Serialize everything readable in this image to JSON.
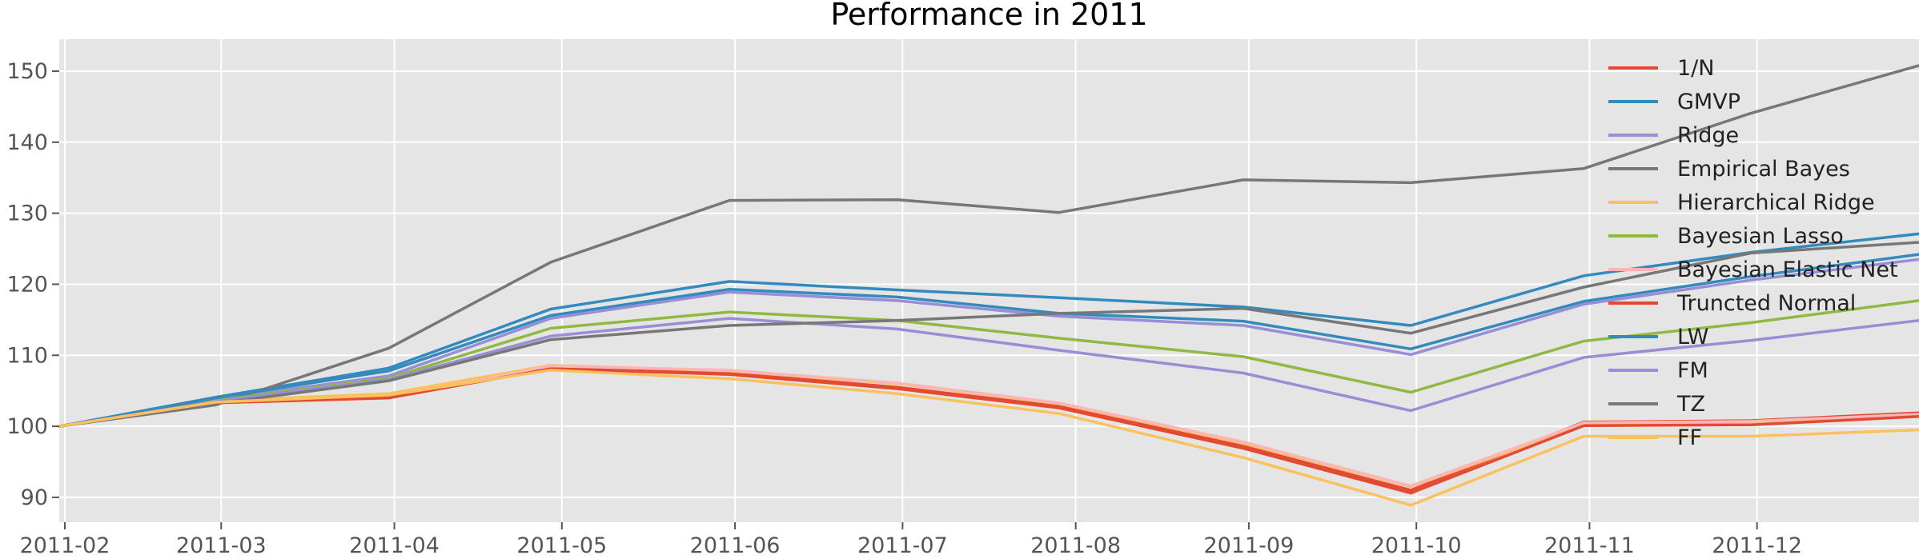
{
  "chart_data": {
    "type": "line",
    "title": "Performance in 2011",
    "xlabel": "",
    "ylabel": "",
    "x": [
      "2011-01-31",
      "2011-02-28",
      "2011-03-31",
      "2011-04-29",
      "2011-05-31",
      "2011-06-30",
      "2011-07-29",
      "2011-08-31",
      "2011-09-30",
      "2011-10-31",
      "2011-11-30",
      "2011-12-30"
    ],
    "xticks": [
      "2011-02",
      "2011-03",
      "2011-04",
      "2011-05",
      "2011-06",
      "2011-07",
      "2011-08",
      "2011-09",
      "2011-10",
      "2011-11",
      "2011-12"
    ],
    "yticks": [
      90,
      100,
      110,
      120,
      130,
      140,
      150
    ],
    "xlim": [
      "2011-01-31",
      "2011-12-30"
    ],
    "ylim": [
      86.5,
      154.5
    ],
    "grid": true,
    "legend_position": "top-right",
    "background": "#e5e5e5",
    "series": [
      {
        "name": "1/N",
        "color": "#e24a33",
        "values": [
          100,
          103.4,
          104.1,
          108.3,
          107.5,
          105.5,
          102.8,
          97.2,
          91.0,
          100.6,
          100.8,
          101.9
        ]
      },
      {
        "name": "GMVP",
        "color": "#348abd",
        "values": [
          100,
          104.1,
          108.2,
          116.5,
          120.4,
          119.2,
          118.1,
          116.8,
          114.2,
          121.2,
          124.5,
          127.1
        ]
      },
      {
        "name": "Ridge",
        "color": "#988ed5",
        "values": [
          100,
          103.8,
          107.1,
          115.2,
          118.9,
          117.7,
          115.5,
          114.2,
          110.1,
          117.2,
          120.6,
          123.5
        ]
      },
      {
        "name": "Empirical Bayes",
        "color": "#777777",
        "values": [
          100,
          103.0,
          111.0,
          123.1,
          131.8,
          131.9,
          130.1,
          134.7,
          134.3,
          136.3,
          144.1,
          150.8
        ]
      },
      {
        "name": "Hierarchical Ridge",
        "color": "#fbc15e",
        "values": [
          100,
          103.6,
          104.6,
          108.6,
          107.8,
          106.0,
          103.2,
          97.6,
          91.5,
          100.2,
          100.4,
          101.5
        ]
      },
      {
        "name": "Bayesian Lasso",
        "color": "#8eba42",
        "values": [
          100,
          103.6,
          106.8,
          113.8,
          116.1,
          114.9,
          112.4,
          109.8,
          104.8,
          112.0,
          114.6,
          117.7
        ]
      },
      {
        "name": "Bayesian Elastic Net",
        "color": "#ffb5b8",
        "values": [
          100,
          103.3,
          104.0,
          108.5,
          107.9,
          106.1,
          103.3,
          97.8,
          91.6,
          100.5,
          100.7,
          101.7
        ]
      },
      {
        "name": "Truncted Normal",
        "color": "#e24a33",
        "values": [
          100,
          103.3,
          104.0,
          108.1,
          107.3,
          105.3,
          102.6,
          96.9,
          90.6,
          100.1,
          100.2,
          101.4
        ]
      },
      {
        "name": "LW",
        "color": "#348abd",
        "values": [
          100,
          104.0,
          107.8,
          115.6,
          119.3,
          118.2,
          115.9,
          114.8,
          110.9,
          117.6,
          121.1,
          124.2
        ]
      },
      {
        "name": "FM",
        "color": "#988ed5",
        "values": [
          100,
          103.5,
          106.6,
          112.7,
          115.2,
          113.7,
          110.7,
          107.5,
          102.2,
          109.7,
          112.1,
          114.9
        ]
      },
      {
        "name": "TZ",
        "color": "#777777",
        "values": [
          100,
          103.2,
          106.4,
          112.2,
          114.2,
          114.9,
          115.9,
          116.6,
          113.1,
          119.6,
          124.4,
          125.9
        ]
      },
      {
        "name": "FF",
        "color": "#fbc15e",
        "values": [
          100,
          103.4,
          104.4,
          107.9,
          106.7,
          104.6,
          101.8,
          95.6,
          88.9,
          98.6,
          98.6,
          99.5
        ]
      }
    ]
  }
}
